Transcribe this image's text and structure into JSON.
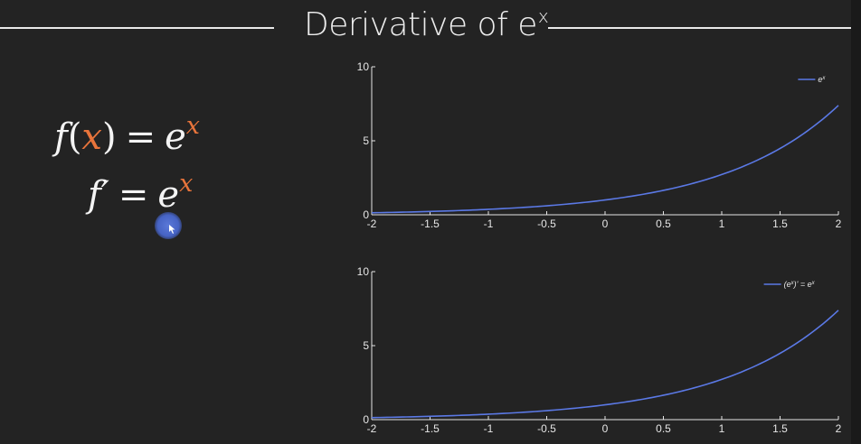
{
  "slide": {
    "title_main": "Derivative of e",
    "title_sup": "x"
  },
  "equations": {
    "f_of_x": {
      "lhs_f": "f",
      "lparen": "(",
      "var": "x",
      "rparen": ")",
      "eq": "=",
      "base": "e",
      "exp": "x"
    },
    "f_prime": {
      "lhs": "f′",
      "eq": "=",
      "base": "e",
      "exp": "x"
    }
  },
  "colors": {
    "background": "#232323",
    "text": "#ececec",
    "accent_orange": "#e8743b",
    "line_blue": "#5b79e6",
    "cursor_blue": "#4a67c9"
  },
  "chart_data": [
    {
      "type": "line",
      "function": "exp",
      "x": [
        -2,
        -1.75,
        -1.5,
        -1.25,
        -1,
        -0.75,
        -0.5,
        -0.25,
        0,
        0.25,
        0.5,
        0.75,
        1,
        1.25,
        1.5,
        1.75,
        2
      ],
      "series": [
        {
          "name": "e^x",
          "values": [
            0.135,
            0.174,
            0.223,
            0.287,
            0.368,
            0.472,
            0.607,
            0.779,
            1,
            1.284,
            1.649,
            2.117,
            2.718,
            3.49,
            4.482,
            5.755,
            7.389
          ]
        }
      ],
      "xlim": [
        -2,
        2
      ],
      "ylim": [
        0,
        10
      ],
      "xticks": [
        "-2",
        "-1.5",
        "-1",
        "-0.5",
        "0",
        "0.5",
        "1",
        "1.5",
        "2"
      ],
      "yticks": [
        "0",
        "5",
        "10"
      ],
      "legend": {
        "label": "e^x",
        "placement": "top-right"
      },
      "grid": false
    },
    {
      "type": "line",
      "function": "exp",
      "x": [
        -2,
        -1.75,
        -1.5,
        -1.25,
        -1,
        -0.75,
        -0.5,
        -0.25,
        0,
        0.25,
        0.5,
        0.75,
        1,
        1.25,
        1.5,
        1.75,
        2
      ],
      "series": [
        {
          "name": "(e^x)' = e^x",
          "values": [
            0.135,
            0.174,
            0.223,
            0.287,
            0.368,
            0.472,
            0.607,
            0.779,
            1,
            1.284,
            1.649,
            2.117,
            2.718,
            3.49,
            4.482,
            5.755,
            7.389
          ]
        }
      ],
      "xlim": [
        -2,
        2
      ],
      "ylim": [
        0,
        10
      ],
      "xticks": [
        "-2",
        "-1.5",
        "-1",
        "-0.5",
        "0",
        "0.5",
        "1",
        "1.5",
        "2"
      ],
      "yticks": [
        "0",
        "5",
        "10"
      ],
      "legend": {
        "label": "(e^x)' = e^x",
        "placement": "top-right"
      },
      "grid": false
    }
  ]
}
